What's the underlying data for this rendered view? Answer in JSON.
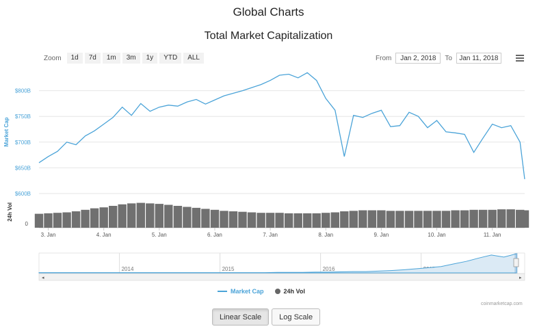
{
  "page": {
    "title": "Global Charts",
    "chart_title": "Total Market Capitalization"
  },
  "zoom": {
    "label": "Zoom",
    "buttons": [
      "1d",
      "7d",
      "1m",
      "3m",
      "1y",
      "YTD",
      "ALL"
    ]
  },
  "range": {
    "from_label": "From",
    "from_value": "Jan 2, 2018",
    "to_label": "To",
    "to_value": "Jan 11, 2018"
  },
  "menu": {
    "icon": "hamburger-icon"
  },
  "chart_data": {
    "type": "line",
    "title": "Total Market Capitalization",
    "x": [
      "2018-01-02T20:00",
      "2018-01-03T00:00",
      "2018-01-03T04:00",
      "2018-01-03T08:00",
      "2018-01-03T12:00",
      "2018-01-03T16:00",
      "2018-01-03T20:00",
      "2018-01-04T00:00",
      "2018-01-04T04:00",
      "2018-01-04T08:00",
      "2018-01-04T12:00",
      "2018-01-04T16:00",
      "2018-01-04T20:00",
      "2018-01-05T00:00",
      "2018-01-05T04:00",
      "2018-01-05T08:00",
      "2018-01-05T12:00",
      "2018-01-05T16:00",
      "2018-01-05T20:00",
      "2018-01-06T00:00",
      "2018-01-06T04:00",
      "2018-01-06T08:00",
      "2018-01-06T12:00",
      "2018-01-06T16:00",
      "2018-01-06T20:00",
      "2018-01-07T00:00",
      "2018-01-07T04:00",
      "2018-01-07T08:00",
      "2018-01-07T12:00",
      "2018-01-07T16:00",
      "2018-01-07T20:00",
      "2018-01-08T00:00",
      "2018-01-08T04:00",
      "2018-01-08T08:00",
      "2018-01-08T12:00",
      "2018-01-08T16:00",
      "2018-01-08T20:00",
      "2018-01-09T00:00",
      "2018-01-09T04:00",
      "2018-01-09T08:00",
      "2018-01-09T12:00",
      "2018-01-09T16:00",
      "2018-01-09T20:00",
      "2018-01-10T00:00",
      "2018-01-10T04:00",
      "2018-01-10T08:00",
      "2018-01-10T12:00",
      "2018-01-10T16:00",
      "2018-01-10T20:00",
      "2018-01-11T00:00",
      "2018-01-11T04:00",
      "2018-01-11T08:00",
      "2018-01-11T12:00",
      "2018-01-11T14:00"
    ],
    "series": [
      {
        "name": "Market Cap",
        "axis": "Market Cap",
        "values": [
          660,
          672,
          682,
          700,
          695,
          712,
          722,
          735,
          748,
          768,
          752,
          775,
          760,
          768,
          772,
          770,
          778,
          783,
          774,
          782,
          790,
          795,
          800,
          806,
          812,
          820,
          830,
          832,
          825,
          835,
          820,
          785,
          762,
          672,
          752,
          748,
          756,
          762,
          730,
          732,
          758,
          750,
          728,
          742,
          720,
          718,
          715,
          680,
          708,
          735,
          728,
          732,
          700,
          628
        ]
      },
      {
        "name": "24h Vol",
        "axis": "24h Vol",
        "values": [
          28,
          29,
          30,
          31,
          33,
          36,
          39,
          41,
          44,
          47,
          49,
          50,
          49,
          48,
          46,
          44,
          42,
          40,
          38,
          36,
          34,
          33,
          32,
          31,
          30,
          30,
          30,
          29,
          29,
          29,
          29,
          30,
          31,
          33,
          34,
          35,
          35,
          35,
          34,
          34,
          34,
          34,
          34,
          34,
          34,
          35,
          35,
          36,
          36,
          36,
          37,
          37,
          36,
          35
        ]
      }
    ],
    "y_axes": [
      {
        "title": "Market Cap",
        "ticks": [
          "$600B",
          "$650B",
          "$700B",
          "$750B",
          "$800B"
        ],
        "range": [
          600,
          850
        ]
      },
      {
        "title": "24h Vol",
        "ticks": [
          "0"
        ]
      }
    ],
    "x_ticks": [
      "3. Jan",
      "4. Jan",
      "5. Jan",
      "6. Jan",
      "7. Jan",
      "8. Jan",
      "9. Jan",
      "10. Jan",
      "11. Jan"
    ],
    "navigator": {
      "ticks": [
        "2014",
        "2015",
        "2016",
        "2017"
      ],
      "values": [
        1,
        1,
        1,
        1,
        1,
        1,
        1,
        1,
        1,
        1,
        1,
        1,
        1,
        1,
        1,
        1,
        1,
        1,
        1,
        2,
        2,
        2,
        3,
        3,
        4,
        5,
        5,
        7,
        9,
        12,
        16,
        20,
        25,
        35,
        45,
        58,
        70,
        62,
        75
      ]
    },
    "legend": [
      "Market Cap",
      "24h Vol"
    ],
    "colors": {
      "market_cap": "#4aa3d8",
      "volume": "#666666"
    }
  },
  "credits": "coinmarketcap.com",
  "scale": {
    "linear": "Linear Scale",
    "log": "Log Scale"
  }
}
